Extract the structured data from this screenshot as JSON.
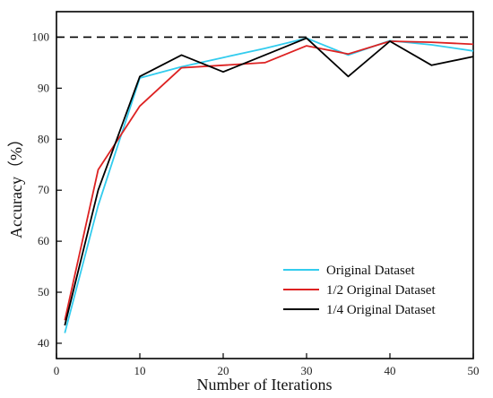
{
  "chart_data": {
    "type": "line",
    "title": "",
    "xlabel": "Number of Iterations",
    "ylabel": "Accuracy（%）",
    "xlim": [
      0,
      50
    ],
    "ylim": [
      37,
      105
    ],
    "x_ticks": [
      0,
      10,
      20,
      30,
      40,
      50
    ],
    "y_ticks": [
      40,
      50,
      60,
      70,
      80,
      90,
      100
    ],
    "x_tick_labels": [
      "0",
      "10",
      "20",
      "30",
      "40",
      "50"
    ],
    "y_tick_labels": [
      "40",
      "50",
      "60",
      "70",
      "80",
      "90",
      "100"
    ],
    "grid": false,
    "reference_line": {
      "y": 100,
      "style": "dashed",
      "color": "#000000"
    },
    "legend": {
      "placement": "bottom-right"
    },
    "series": [
      {
        "name": "Original Dataset",
        "color": "#33ccee",
        "x": [
          1,
          5,
          10,
          15,
          20,
          25,
          30,
          35,
          40,
          45,
          50
        ],
        "y": [
          42.0,
          67.0,
          92.0,
          94.2,
          96.0,
          97.8,
          99.8,
          96.5,
          99.3,
          98.5,
          97.3
        ]
      },
      {
        "name": "1/2 Original Dataset",
        "color": "#dd2222",
        "x": [
          1,
          5,
          10,
          15,
          20,
          25,
          30,
          35,
          40,
          45,
          50
        ],
        "y": [
          44.5,
          74.0,
          86.5,
          94.0,
          94.5,
          95.0,
          98.3,
          96.7,
          99.2,
          99.0,
          98.6
        ]
      },
      {
        "name": "1/4 Original Dataset",
        "color": "#000000",
        "x": [
          1,
          5,
          10,
          15,
          20,
          25,
          30,
          35,
          40,
          45,
          50
        ],
        "y": [
          43.5,
          70.0,
          92.3,
          96.5,
          93.2,
          96.5,
          99.8,
          92.3,
          99.2,
          94.5,
          96.2
        ]
      }
    ]
  }
}
